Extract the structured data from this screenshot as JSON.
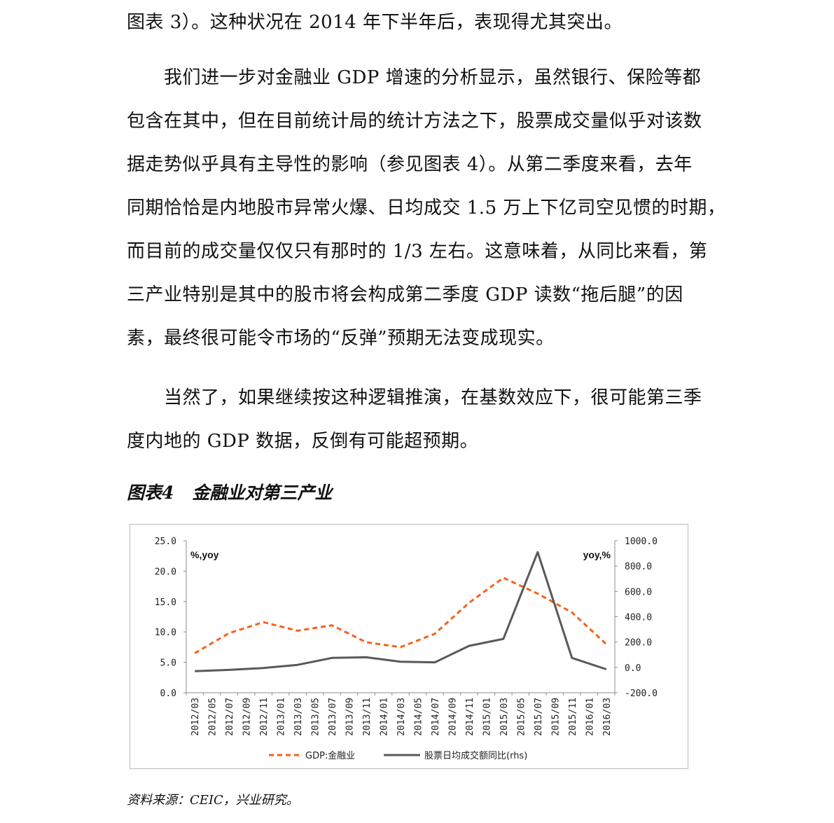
{
  "paragraphs": {
    "p1": [
      "图表 3）。这种状况在 2014 年下半年后，表现得尤其突出。"
    ],
    "p2": [
      "　　我们进一步对金融业 GDP 增速的分析显示，虽然银行、保险等都",
      "包含在其中，但在目前统计局的统计方法之下，股票成交量似乎对该数",
      "据走势似乎具有主导性的影响（参见图表 4）。从第二季度来看，去年",
      "同期恰恰是内地股市异常火爆、日均成交 1.5 万上下亿司空见惯的时期，",
      "而目前的成交量仅仅只有那时的 1/3 左右。这意味着，从同比来看，第",
      "三产业特别是其中的股市将会构成第二季度 GDP 读数“拖后腿”的因",
      "素，最终很可能令市场的“反弹”预期无法变成现实。"
    ],
    "p3": [
      "　　当然了，如果继续按这种逻辑推演，在基数效应下，很可能第三季",
      "度内地的 GDP 数据，反倒有可能超预期。"
    ]
  },
  "figure": {
    "number": "图表4",
    "title": "金融业对第三产业",
    "source": "资料来源：CEIC，兴业研究。"
  },
  "chart_data": {
    "type": "line",
    "x": [
      "2012/03",
      "2012/05",
      "2012/07",
      "2012/09",
      "2012/11",
      "2013/01",
      "2013/03",
      "2013/05",
      "2013/07",
      "2013/09",
      "2013/11",
      "2014/01",
      "2014/03",
      "2014/05",
      "2014/07",
      "2014/09",
      "2014/11",
      "2015/01",
      "2015/03",
      "2015/05",
      "2015/07",
      "2015/09",
      "2015/11",
      "2016/01",
      "2016/03"
    ],
    "left_unit_label": "%,yoy",
    "right_unit_label": "yoy,%",
    "ylim_left": [
      0,
      25
    ],
    "ylim_right": [
      -200,
      1000
    ],
    "yticks_left": [
      "25.0",
      "20.0",
      "15.0",
      "10.0",
      "5.0",
      "0.0"
    ],
    "yticks_right": [
      "1000.0",
      "800.0",
      "600.0",
      "400.0",
      "200.0",
      "0.0",
      "-200.0"
    ],
    "series": [
      {
        "name": "GDP:金融业",
        "axis": "left",
        "style": "dashed",
        "color": "#f4621c",
        "x": [
          "2012/03",
          "2012/07",
          "2012/11",
          "2013/03",
          "2013/07",
          "2013/11",
          "2014/03",
          "2014/07",
          "2014/11",
          "2015/03",
          "2015/07",
          "2015/11",
          "2016/03"
        ],
        "values": [
          6.5,
          9.8,
          11.6,
          10.2,
          11.1,
          8.3,
          7.5,
          9.7,
          14.8,
          18.9,
          16.3,
          13.2,
          8.0
        ]
      },
      {
        "name": "股票日均成交额同比(rhs)",
        "axis": "right",
        "style": "solid",
        "color": "#595959",
        "x": [
          "2012/03",
          "2012/07",
          "2012/11",
          "2013/03",
          "2013/07",
          "2013/11",
          "2014/03",
          "2014/07",
          "2014/11",
          "2015/03",
          "2015/07",
          "2015/11",
          "2016/03"
        ],
        "values": [
          -30,
          -20,
          -5,
          20,
          75,
          80,
          45,
          40,
          170,
          225,
          910,
          75,
          -15
        ]
      }
    ],
    "colors": {
      "line1": "#f4621c",
      "line2": "#595959",
      "frame": "#b9b9b9"
    }
  }
}
